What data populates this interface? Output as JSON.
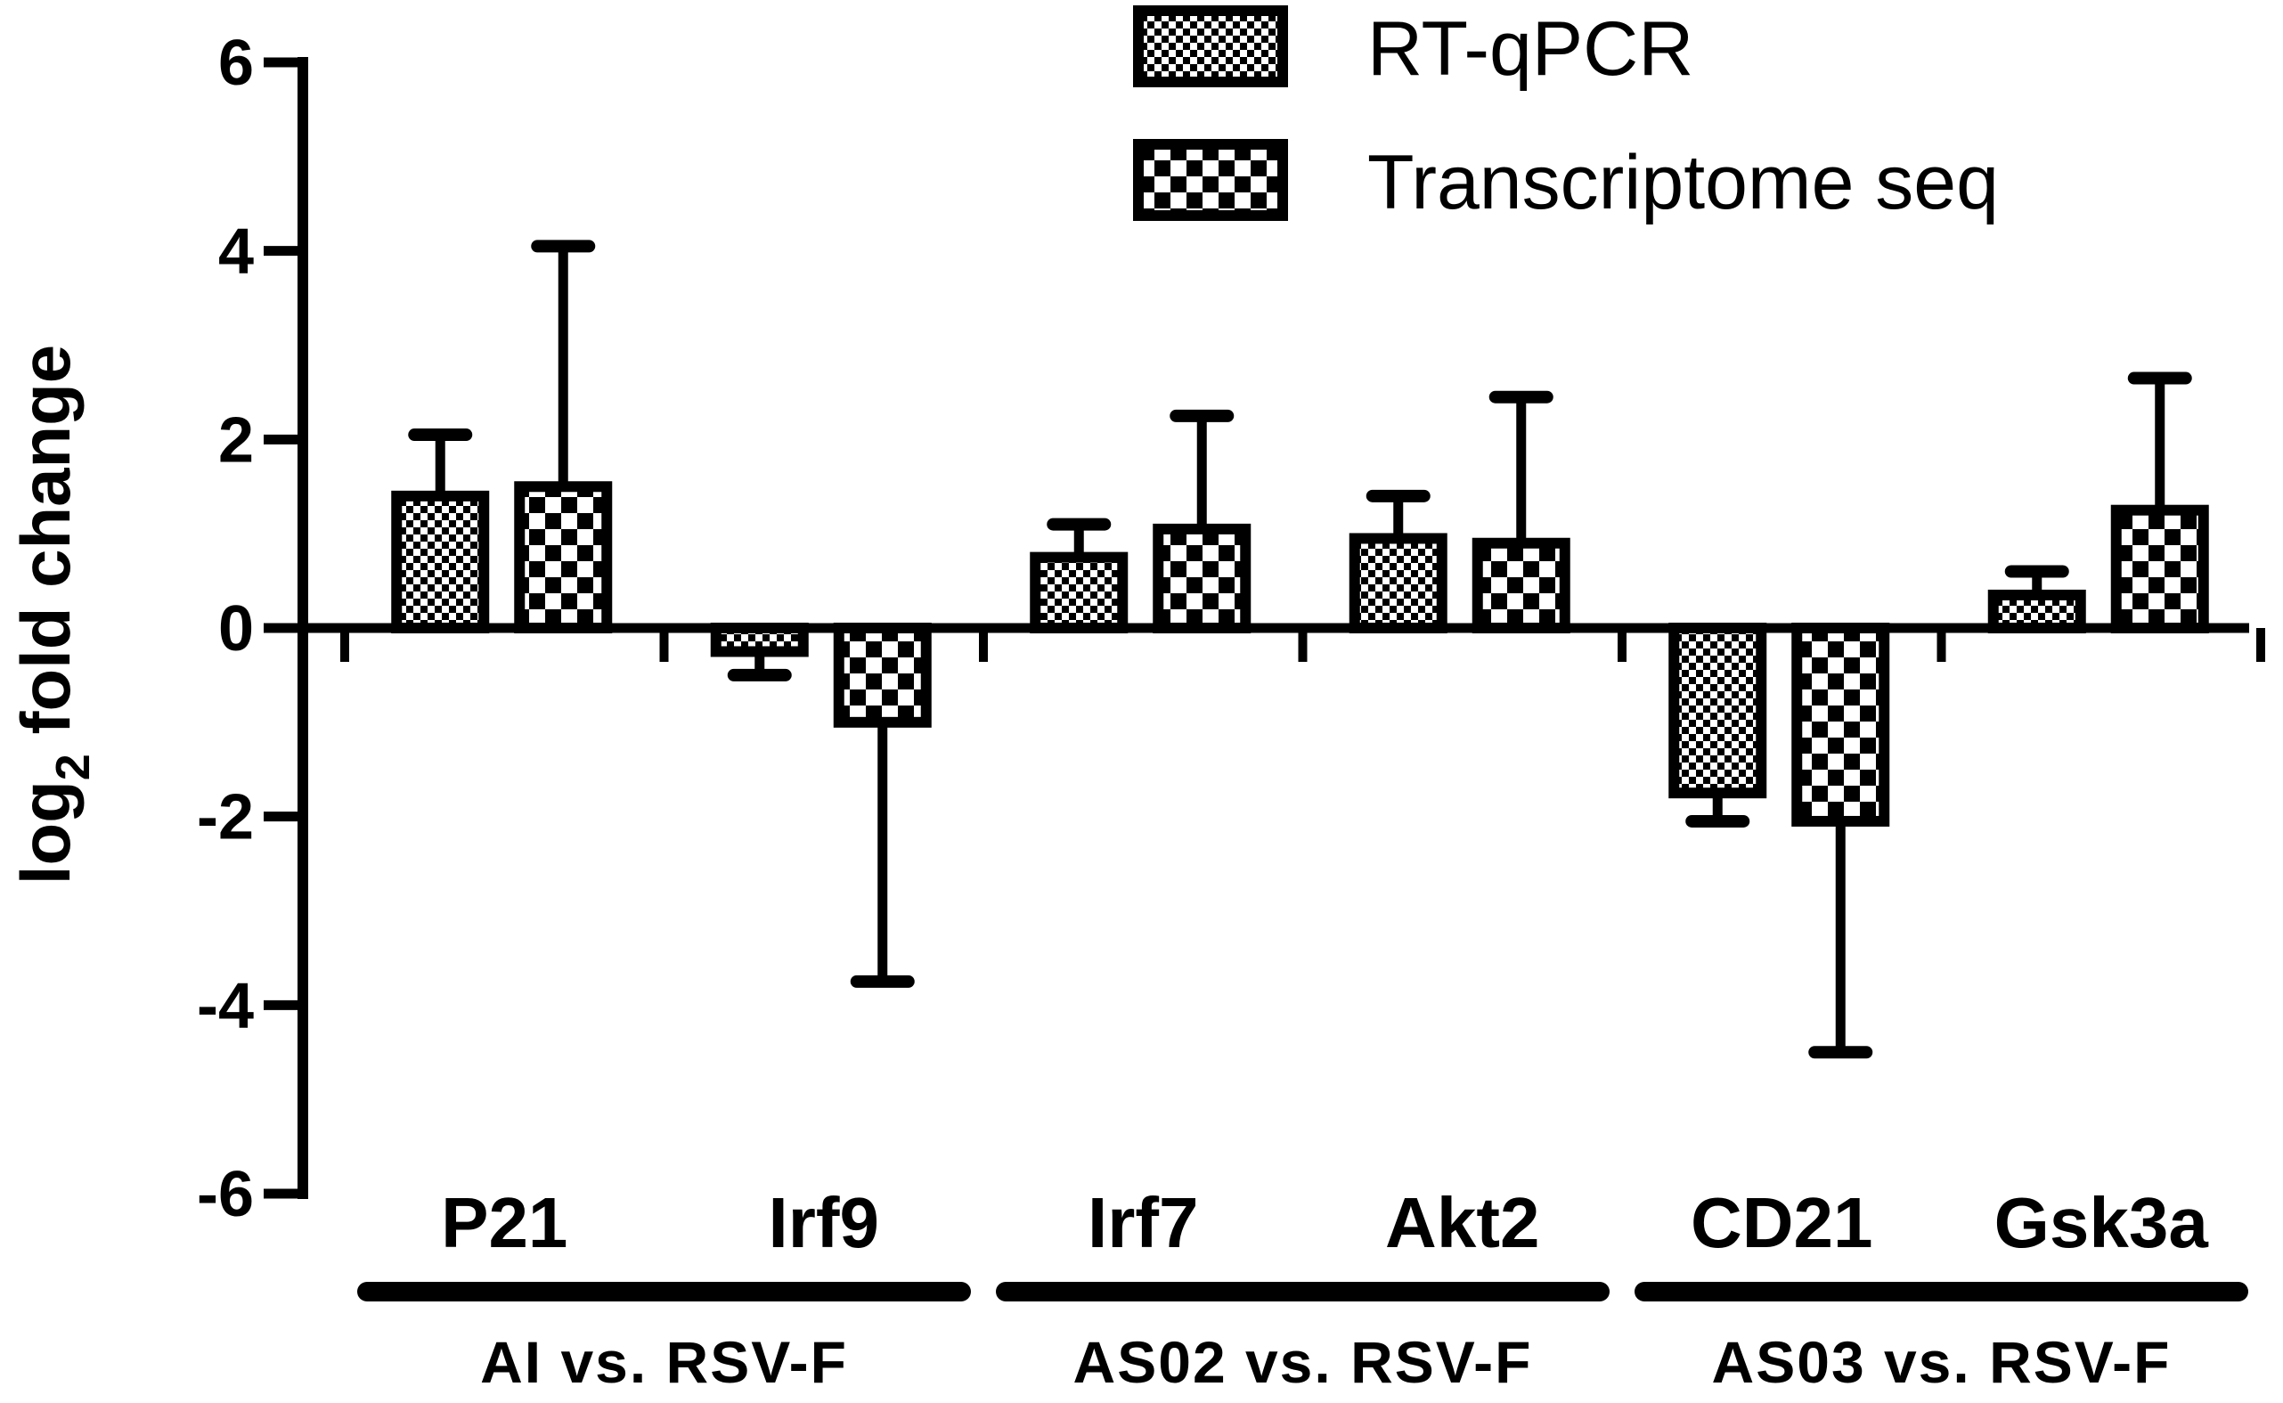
{
  "chart_data": {
    "type": "bar",
    "title": "",
    "ylabel": "log",
    "ylabel_subscript": "2",
    "ylabel_rest": " fold change",
    "ylim": [
      -6,
      6
    ],
    "yticks": [
      6,
      4,
      2,
      0,
      -2,
      -4,
      -6
    ],
    "ytick_labels": [
      "6",
      "4",
      "2",
      "0",
      "-2",
      "-4",
      "-6"
    ],
    "categories": [
      "P21",
      "Irf9",
      "Irf7",
      "Akt2",
      "CD21",
      "Gsk3a"
    ],
    "groups": [
      {
        "label": "AI vs. RSV-F",
        "categories": [
          "P21",
          "Irf9"
        ]
      },
      {
        "label": "AS02 vs. RSV-F",
        "categories": [
          "Irf7",
          "Akt2"
        ]
      },
      {
        "label": "AS03 vs. RSV-F",
        "categories": [
          "CD21",
          "Gsk3a"
        ]
      }
    ],
    "series": [
      {
        "name": "RT-qPCR",
        "values": [
          1.4,
          -0.25,
          0.75,
          0.95,
          -1.75,
          0.35
        ],
        "errors": [
          0.65,
          0.25,
          0.35,
          0.45,
          0.3,
          0.25
        ]
      },
      {
        "name": "Transcriptome seq",
        "values": [
          1.5,
          -1.0,
          1.05,
          0.9,
          -2.05,
          1.25
        ],
        "errors": [
          2.55,
          2.75,
          1.2,
          1.55,
          2.45,
          1.4
        ]
      }
    ],
    "legend_position": "top-right",
    "grid": false
  }
}
